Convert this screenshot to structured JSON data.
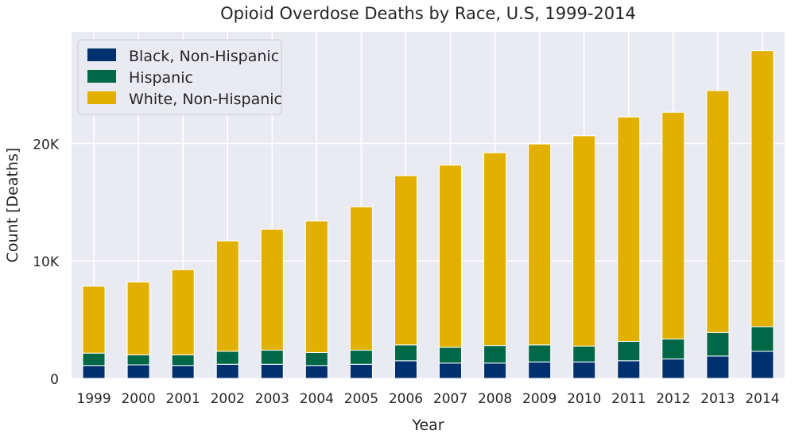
{
  "chart_data": {
    "type": "bar",
    "stacked": true,
    "title": "Opioid Overdose Deaths by Race, U.S, 1999-2014",
    "xlabel": "Year",
    "ylabel": "Count [Deaths]",
    "ylim": [
      0,
      29500
    ],
    "yticks": [
      0,
      10000,
      20000
    ],
    "ytick_labels": [
      "0",
      "10K",
      "20K"
    ],
    "grid": true,
    "legend_position": "top-left",
    "categories": [
      "1999",
      "2000",
      "2001",
      "2002",
      "2003",
      "2004",
      "2005",
      "2006",
      "2007",
      "2008",
      "2009",
      "2010",
      "2011",
      "2012",
      "2013",
      "2014"
    ],
    "series": [
      {
        "name": "Black, Non-Hispanic",
        "color": "#00306e",
        "values": [
          1100,
          1150,
          1100,
          1200,
          1200,
          1100,
          1200,
          1500,
          1300,
          1300,
          1400,
          1400,
          1500,
          1650,
          1900,
          2300
        ]
      },
      {
        "name": "Hispanic",
        "color": "#006847",
        "values": [
          1050,
          850,
          900,
          1100,
          1200,
          1100,
          1200,
          1350,
          1350,
          1500,
          1450,
          1350,
          1650,
          1700,
          2000,
          2100
        ]
      },
      {
        "name": "White, Non-Hispanic",
        "color": "#e2b000",
        "values": [
          5700,
          6200,
          7250,
          9400,
          10300,
          11200,
          12200,
          14400,
          15500,
          16400,
          17100,
          17900,
          19100,
          19300,
          20600,
          23500
        ]
      }
    ]
  },
  "colors": {
    "plot_background": "#eaeaf2",
    "grid": "#ffffff",
    "text": "#262626"
  }
}
